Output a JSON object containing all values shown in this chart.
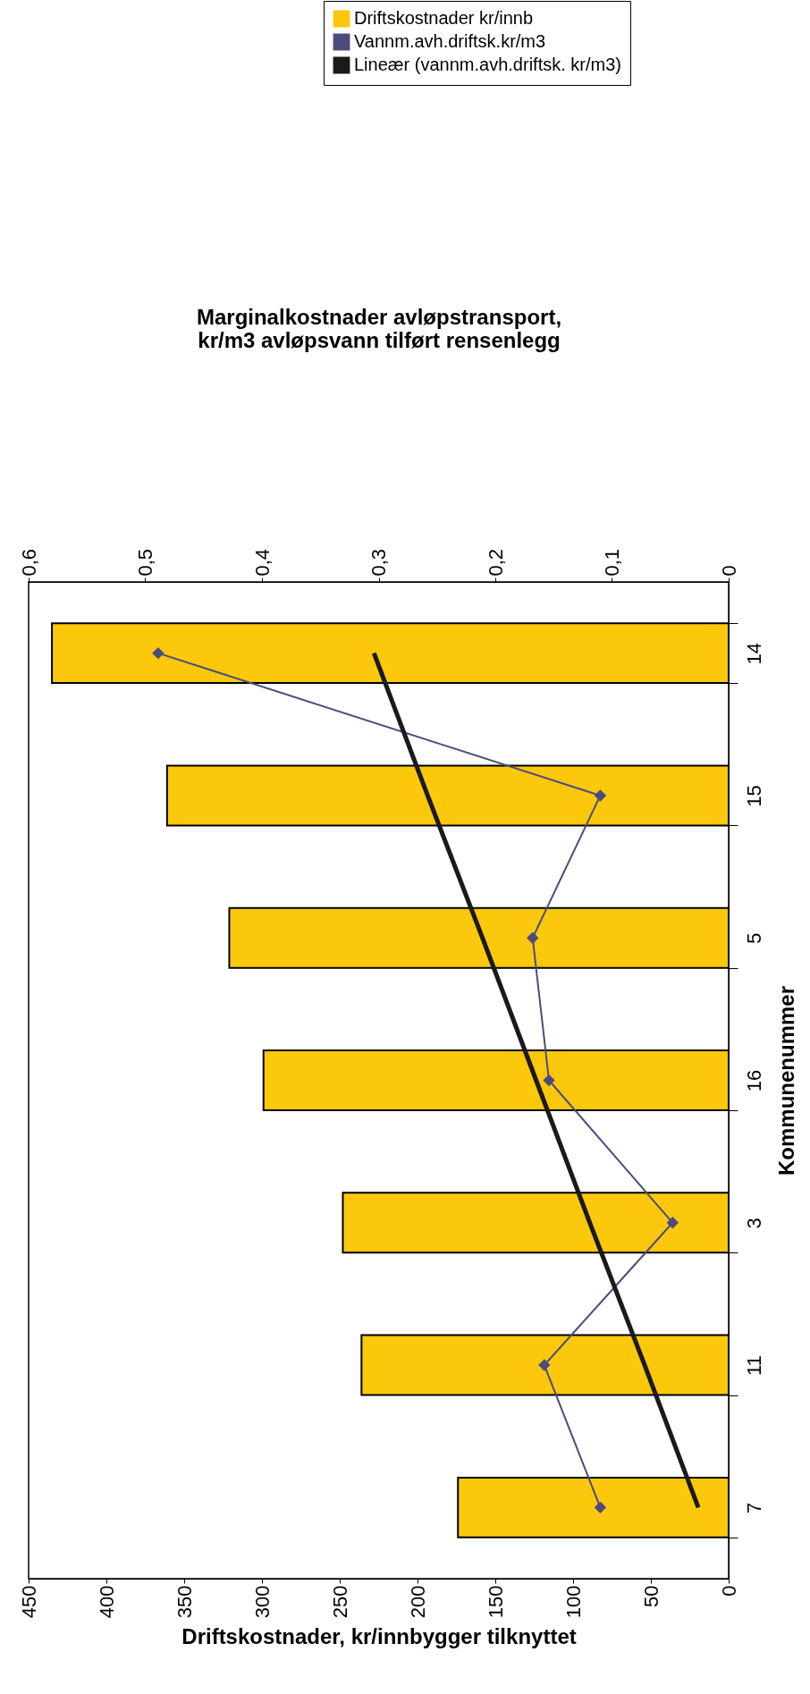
{
  "chart_data": {
    "type": "bar",
    "orientation": "horizontal",
    "categories": [
      "14",
      "15",
      "5",
      "16",
      "3",
      "11",
      "7"
    ],
    "xlabel": "Driftskostnader, kr/innbygger tilknyttet",
    "x2label": "Marginalkostnader avløpstransport,\nkr/m3 avløpsvann tilført rensenlegg",
    "ylabel": "Kommunenummer",
    "xlim": [
      450,
      0
    ],
    "xticks": [
      450,
      400,
      350,
      300,
      250,
      200,
      150,
      100,
      50,
      0
    ],
    "x2lim": [
      0.6,
      0
    ],
    "x2ticks": [
      {
        "value": 0.6,
        "label": "0,6"
      },
      {
        "value": 0.5,
        "label": "0,5"
      },
      {
        "value": 0.4,
        "label": "0,4"
      },
      {
        "value": 0.3,
        "label": "0,3"
      },
      {
        "value": 0.2,
        "label": "0,2"
      },
      {
        "value": 0.1,
        "label": "0,1"
      },
      0
    ],
    "legend": "top",
    "grid": false,
    "series": [
      {
        "name": "Driftskostnader kr/innb",
        "color": "#fcc80c",
        "values": [
          435,
          361,
          321,
          299,
          248,
          236,
          174
        ]
      },
      {
        "name": "Vannm.avh.driftsk.kr/m3",
        "type": "line",
        "axis": "x2",
        "marker": "diamond",
        "color": "#4b4b7d",
        "values": [
          0.489,
          0.11,
          0.168,
          0.154,
          0.048,
          0.158,
          0.11
        ]
      },
      {
        "name": "Lineær (vannm.avh.driftsk. kr/m3)",
        "type": "line",
        "axis": "x2",
        "marker": "none",
        "color": "#1a1a1a",
        "values": [
          0.304,
          0.258,
          0.211,
          0.165,
          0.119,
          0.072,
          0.026
        ]
      }
    ]
  }
}
